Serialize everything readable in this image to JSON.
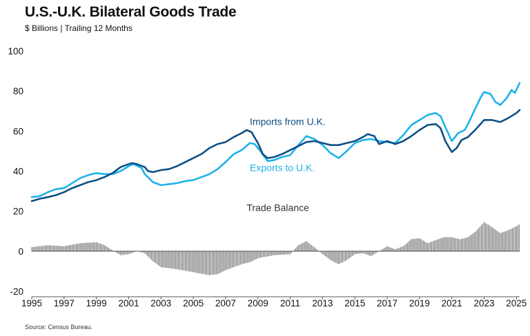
{
  "title": "U.S.-U.K. Bilateral Goods Trade",
  "subtitle": "$ Billions | Trailing 12 Months",
  "source": "Source: Census Bureau.",
  "colors": {
    "imports": "#0d4f86",
    "exports": "#1fb2e8",
    "balance": "#333333",
    "axis": "#555555"
  },
  "chart_data": {
    "type": "line",
    "xlim": [
      1995,
      2025.2
    ],
    "ylim": [
      -20,
      100
    ],
    "x_ticks": [
      "1995",
      "1997",
      "1999",
      "2001",
      "2003",
      "2005",
      "2007",
      "2009",
      "2011",
      "2013",
      "2015",
      "2017",
      "2019",
      "2021",
      "2023",
      "2025"
    ],
    "y_ticks": [
      "100",
      "80",
      "60",
      "40",
      "20",
      "0",
      "-20"
    ],
    "grid": false,
    "series": [
      {
        "name": "Imports from U.K.",
        "type": "line",
        "points": [
          [
            1995.0,
            25.0
          ],
          [
            1995.5,
            26.2
          ],
          [
            1996.0,
            27.0
          ],
          [
            1996.5,
            28.0
          ],
          [
            1997.0,
            29.5
          ],
          [
            1997.5,
            31.5
          ],
          [
            1998.0,
            33.0
          ],
          [
            1998.5,
            34.5
          ],
          [
            1999.0,
            35.5
          ],
          [
            1999.5,
            37.0
          ],
          [
            2000.0,
            39.0
          ],
          [
            2000.5,
            42.0
          ],
          [
            2001.0,
            43.5
          ],
          [
            2001.2,
            44.0
          ],
          [
            2001.5,
            43.5
          ],
          [
            2002.0,
            42.0
          ],
          [
            2002.2,
            40.0
          ],
          [
            2002.5,
            39.5
          ],
          [
            2003.0,
            40.5
          ],
          [
            2003.5,
            41.0
          ],
          [
            2004.0,
            42.5
          ],
          [
            2004.5,
            44.5
          ],
          [
            2005.0,
            46.5
          ],
          [
            2005.5,
            48.5
          ],
          [
            2006.0,
            51.5
          ],
          [
            2006.5,
            53.5
          ],
          [
            2007.0,
            54.5
          ],
          [
            2007.5,
            57.0
          ],
          [
            2008.0,
            59.0
          ],
          [
            2008.3,
            60.5
          ],
          [
            2008.6,
            59.5
          ],
          [
            2009.0,
            54.0
          ],
          [
            2009.3,
            48.5
          ],
          [
            2009.6,
            46.5
          ],
          [
            2010.0,
            47.0
          ],
          [
            2010.5,
            48.5
          ],
          [
            2011.0,
            50.5
          ],
          [
            2011.5,
            52.5
          ],
          [
            2012.0,
            54.5
          ],
          [
            2012.5,
            55.0
          ],
          [
            2013.0,
            54.0
          ],
          [
            2013.5,
            53.0
          ],
          [
            2014.0,
            53.0
          ],
          [
            2014.5,
            54.0
          ],
          [
            2015.0,
            55.0
          ],
          [
            2015.5,
            57.0
          ],
          [
            2015.8,
            58.5
          ],
          [
            2016.2,
            57.5
          ],
          [
            2016.5,
            53.5
          ],
          [
            2017.0,
            55.0
          ],
          [
            2017.5,
            53.5
          ],
          [
            2018.0,
            55.0
          ],
          [
            2018.5,
            57.5
          ],
          [
            2019.0,
            60.5
          ],
          [
            2019.5,
            63.0
          ],
          [
            2020.0,
            63.5
          ],
          [
            2020.3,
            61.5
          ],
          [
            2020.6,
            55.0
          ],
          [
            2021.0,
            49.5
          ],
          [
            2021.3,
            51.5
          ],
          [
            2021.6,
            55.5
          ],
          [
            2022.0,
            57.0
          ],
          [
            2022.5,
            61.0
          ],
          [
            2023.0,
            65.5
          ],
          [
            2023.5,
            65.5
          ],
          [
            2024.0,
            64.5
          ],
          [
            2024.5,
            66.5
          ],
          [
            2025.0,
            69.0
          ],
          [
            2025.2,
            70.5
          ]
        ]
      },
      {
        "name": "Exports to U.K.",
        "type": "line",
        "points": [
          [
            1995.0,
            27.0
          ],
          [
            1995.5,
            27.5
          ],
          [
            1996.0,
            29.5
          ],
          [
            1996.5,
            31.0
          ],
          [
            1997.0,
            31.5
          ],
          [
            1997.5,
            34.0
          ],
          [
            1998.0,
            36.5
          ],
          [
            1998.5,
            38.0
          ],
          [
            1999.0,
            39.0
          ],
          [
            1999.5,
            38.5
          ],
          [
            2000.0,
            38.5
          ],
          [
            2000.5,
            40.0
          ],
          [
            2001.0,
            42.5
          ],
          [
            2001.3,
            43.5
          ],
          [
            2001.8,
            41.5
          ],
          [
            2002.0,
            38.5
          ],
          [
            2002.5,
            34.5
          ],
          [
            2003.0,
            33.0
          ],
          [
            2003.5,
            33.5
          ],
          [
            2004.0,
            34.0
          ],
          [
            2004.5,
            35.0
          ],
          [
            2005.0,
            35.5
          ],
          [
            2005.5,
            37.0
          ],
          [
            2006.0,
            38.5
          ],
          [
            2006.5,
            41.0
          ],
          [
            2007.0,
            44.5
          ],
          [
            2007.5,
            48.5
          ],
          [
            2008.0,
            50.5
          ],
          [
            2008.5,
            54.0
          ],
          [
            2008.8,
            53.5
          ],
          [
            2009.2,
            49.5
          ],
          [
            2009.6,
            45.0
          ],
          [
            2010.0,
            45.5
          ],
          [
            2010.5,
            47.0
          ],
          [
            2011.0,
            48.0
          ],
          [
            2011.5,
            53.0
          ],
          [
            2012.0,
            57.5
          ],
          [
            2012.5,
            56.0
          ],
          [
            2013.0,
            53.0
          ],
          [
            2013.5,
            49.0
          ],
          [
            2014.0,
            46.5
          ],
          [
            2014.5,
            50.0
          ],
          [
            2015.0,
            54.0
          ],
          [
            2015.5,
            55.5
          ],
          [
            2016.0,
            56.0
          ],
          [
            2016.5,
            55.0
          ],
          [
            2017.0,
            54.5
          ],
          [
            2017.5,
            54.0
          ],
          [
            2018.0,
            58.0
          ],
          [
            2018.5,
            63.0
          ],
          [
            2019.0,
            65.5
          ],
          [
            2019.5,
            68.0
          ],
          [
            2020.0,
            69.0
          ],
          [
            2020.3,
            67.5
          ],
          [
            2020.6,
            62.0
          ],
          [
            2021.0,
            55.0
          ],
          [
            2021.4,
            59.0
          ],
          [
            2021.8,
            60.5
          ],
          [
            2022.0,
            63.5
          ],
          [
            2022.5,
            72.0
          ],
          [
            2022.8,
            77.0
          ],
          [
            2023.0,
            79.5
          ],
          [
            2023.4,
            78.5
          ],
          [
            2023.7,
            74.5
          ],
          [
            2024.0,
            73.0
          ],
          [
            2024.4,
            76.5
          ],
          [
            2024.7,
            80.5
          ],
          [
            2024.9,
            79.0
          ],
          [
            2025.2,
            84.0
          ]
        ]
      },
      {
        "name": "Trade Balance",
        "type": "bar",
        "points": [
          [
            1995.0,
            2.0
          ],
          [
            1996.0,
            3.0
          ],
          [
            1997.0,
            2.5
          ],
          [
            1998.0,
            4.0
          ],
          [
            1999.0,
            4.5
          ],
          [
            1999.5,
            3.0
          ],
          [
            2000.0,
            0.5
          ],
          [
            2000.5,
            -2.0
          ],
          [
            2001.0,
            -1.5
          ],
          [
            2001.5,
            0.0
          ],
          [
            2002.0,
            -1.0
          ],
          [
            2002.5,
            -5.0
          ],
          [
            2003.0,
            -8.0
          ],
          [
            2004.0,
            -9.0
          ],
          [
            2005.0,
            -10.5
          ],
          [
            2006.0,
            -12.0
          ],
          [
            2006.5,
            -11.5
          ],
          [
            2007.0,
            -9.5
          ],
          [
            2007.5,
            -8.0
          ],
          [
            2008.0,
            -6.5
          ],
          [
            2008.5,
            -5.5
          ],
          [
            2009.0,
            -3.5
          ],
          [
            2010.0,
            -2.0
          ],
          [
            2011.0,
            -1.5
          ],
          [
            2011.5,
            3.0
          ],
          [
            2012.0,
            5.0
          ],
          [
            2012.5,
            2.0
          ],
          [
            2013.0,
            -1.5
          ],
          [
            2013.5,
            -4.5
          ],
          [
            2014.0,
            -6.5
          ],
          [
            2014.5,
            -4.5
          ],
          [
            2015.0,
            -1.5
          ],
          [
            2015.5,
            -1.0
          ],
          [
            2016.0,
            -2.5
          ],
          [
            2016.5,
            0.0
          ],
          [
            2017.0,
            2.5
          ],
          [
            2017.5,
            1.0
          ],
          [
            2018.0,
            2.5
          ],
          [
            2018.5,
            6.0
          ],
          [
            2019.0,
            6.5
          ],
          [
            2019.5,
            4.0
          ],
          [
            2020.0,
            5.5
          ],
          [
            2020.5,
            7.0
          ],
          [
            2021.0,
            7.0
          ],
          [
            2021.5,
            6.0
          ],
          [
            2022.0,
            7.0
          ],
          [
            2022.5,
            10.0
          ],
          [
            2023.0,
            14.5
          ],
          [
            2023.5,
            12.0
          ],
          [
            2024.0,
            9.0
          ],
          [
            2024.5,
            10.5
          ],
          [
            2025.0,
            12.5
          ],
          [
            2025.2,
            13.5
          ]
        ]
      }
    ],
    "series_labels": [
      {
        "name": "Imports from U.K.",
        "anchor": "2008.5,63",
        "color_key": "imports"
      },
      {
        "name": "Exports to U.K.",
        "anchor": "2008.5,40",
        "color_key": "exports"
      },
      {
        "name": "Trade Balance",
        "anchor": "2008.3,20",
        "color_key": "balance"
      }
    ]
  }
}
